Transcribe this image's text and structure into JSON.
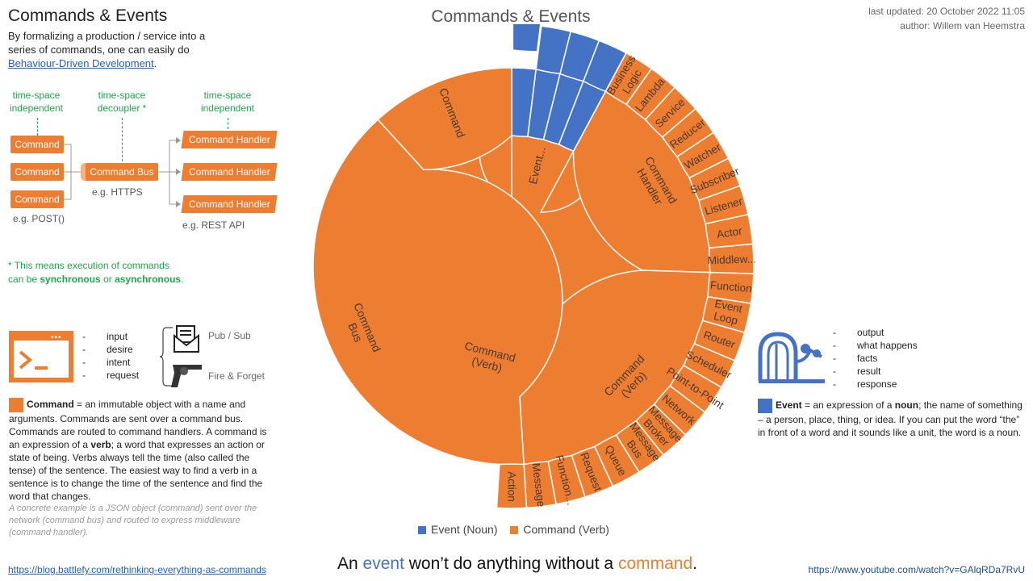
{
  "title": "Commands & Events",
  "intro": {
    "text": "By formalizing a production / service into a series of commands, one can easily do",
    "link": "Behaviour-Driven Development",
    "after": "."
  },
  "flow": {
    "label_left": "time-space independent",
    "label_mid": "time-space decoupler *",
    "label_right": "time-space independent",
    "commands": [
      "Command",
      "Command",
      "Command"
    ],
    "bus": "Command Bus",
    "handlers": [
      "Command Handler",
      "Command Handler",
      "Command Handler"
    ],
    "eg_left": "e.g.  POST()",
    "eg_mid": "e.g.  HTTPS",
    "eg_right": "e.g.  REST API"
  },
  "footnote": {
    "line1": "* This means execution  of commands",
    "line2_prefix": "can be ",
    "sync": "synchronous",
    "mid": "  or ",
    "async": "asynchronous",
    "end": "."
  },
  "command_block": {
    "bullets": [
      "input",
      "desire",
      "intent",
      "request"
    ],
    "pubsub": "Pub / Sub",
    "fire": "Fire & Forget",
    "def_bold": "Command",
    "def_text": " = an immutable object with a name and arguments. Commands are sent over a command bus. Commands are routed to command handlers. A command is an expression of a ",
    "def_verb": "verb",
    "def_text2": "; a word that expresses an action or state of being. Verbs always tell the time (also called the tense) of the sentence.  The easiest way to find a verb in a sentence  is to change the time of the sentence and find the word that changes.",
    "example": "A concrete example is a JSON object (command) sent over the network (command bus) and routed to express middleware (command handler)."
  },
  "event_block": {
    "bullets": [
      "output",
      "what happens",
      "facts",
      "result",
      "response"
    ],
    "def_bold": "Event",
    "def_text": "  = an expression of a ",
    "def_noun": "noun",
    "def_text2": "; the name of something – a person, place, thing, or idea. If you can put the word “the”  in front of a word and it sounds like a unit, the word is a noun."
  },
  "meta": {
    "updated": "last updated: 20 October 2022 11:05",
    "author": "author: Willem van Heemstra"
  },
  "links": {
    "left": "https://blog.battlefy.com/rethinking-everything-as-commands",
    "right": "https://www.youtube.com/watch?v=GAlqRDa7RvU"
  },
  "tagline": {
    "prefix": "An ",
    "event": "event",
    "mid": " won’t do anything without a ",
    "command": "command",
    "end": "."
  },
  "chart_data": {
    "type": "sunburst",
    "title": "Commands & Events",
    "colors": {
      "event": "#4472c4",
      "command": "#ed7d31"
    },
    "legend": [
      "Event (Noun)",
      "Command (Verb)"
    ],
    "total_units": 51,
    "ring1": [
      {
        "label": "Event...",
        "value": 4,
        "group": "event"
      },
      {
        "label": "Command (Verb)",
        "value": 47,
        "group": "command"
      }
    ],
    "ring2": [
      {
        "label": "",
        "value": 1,
        "group": "event"
      },
      {
        "label": "",
        "value": 1,
        "group": "event"
      },
      {
        "label": "",
        "value": 1,
        "group": "event"
      },
      {
        "label": "",
        "value": 1,
        "group": "event"
      },
      {
        "label": "Command Handler",
        "value": 9,
        "group": "command"
      },
      {
        "label": "Command (Verb)",
        "value": 12,
        "group": "command"
      },
      {
        "label": "Command Bus",
        "value": 20,
        "group": "command"
      },
      {
        "label": "Command",
        "value": 6,
        "group": "command"
      }
    ],
    "ring3": [
      {
        "label": "",
        "value": 1,
        "group": "event",
        "explode": true
      },
      {
        "label": "",
        "value": 1,
        "group": "event",
        "explode": false
      },
      {
        "label": "",
        "value": 1,
        "group": "event",
        "explode": false
      },
      {
        "label": "",
        "value": 1,
        "group": "event",
        "explode": false
      },
      {
        "label": "Business Logic",
        "value": 1,
        "group": "command"
      },
      {
        "label": "Lambda",
        "value": 1,
        "group": "command"
      },
      {
        "label": "Service",
        "value": 1,
        "group": "command"
      },
      {
        "label": "Reducer",
        "value": 1,
        "group": "command"
      },
      {
        "label": "Watcher",
        "value": 1,
        "group": "command"
      },
      {
        "label": "Subscriber",
        "value": 1,
        "group": "command"
      },
      {
        "label": "Listener",
        "value": 1,
        "group": "command"
      },
      {
        "label": "Actor",
        "value": 1,
        "group": "command"
      },
      {
        "label": "Middlew...",
        "value": 1,
        "group": "command"
      },
      {
        "label": "Function",
        "value": 1,
        "group": "command"
      },
      {
        "label": "Event Loop",
        "value": 1,
        "group": "command"
      },
      {
        "label": "Router",
        "value": 1,
        "group": "command"
      },
      {
        "label": "Scheduler",
        "value": 1,
        "group": "command"
      },
      {
        "label": "Point-to-Point",
        "value": 1,
        "group": "command"
      },
      {
        "label": "Network",
        "value": 1,
        "group": "command"
      },
      {
        "label": "Message Broker",
        "value": 1,
        "group": "command"
      },
      {
        "label": "Message Bus",
        "value": 1,
        "group": "command"
      },
      {
        "label": "Queue",
        "value": 1,
        "group": "command"
      },
      {
        "label": "Request",
        "value": 1,
        "group": "command"
      },
      {
        "label": "Function...",
        "value": 1,
        "group": "command"
      },
      {
        "label": "Message",
        "value": 1,
        "group": "command"
      },
      {
        "label": "Action",
        "value": 1,
        "group": "command"
      }
    ]
  }
}
